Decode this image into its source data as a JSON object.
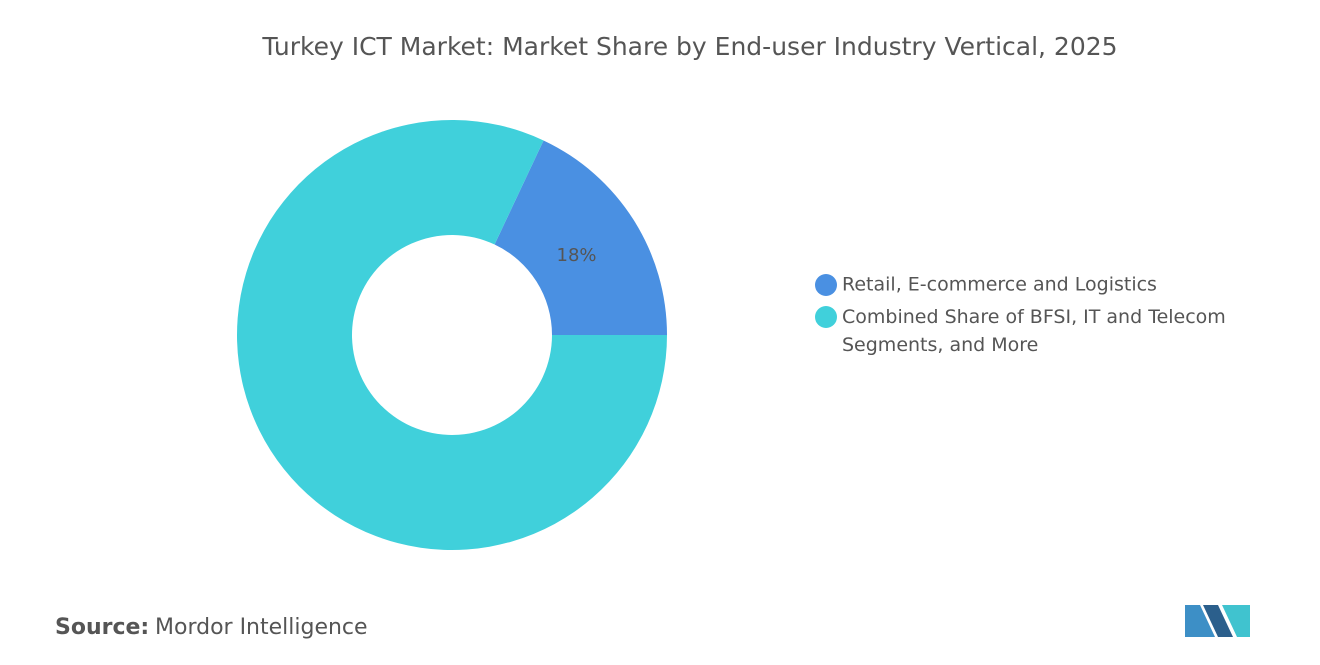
{
  "chart_data": {
    "type": "donut",
    "title": "Turkey ICT Market: Market Share by End-user Industry Vertical, 2025",
    "categories": [
      "Retail, E-commerce and Logistics",
      "Combined Share of BFSI, IT and Telecom Segments, and More"
    ],
    "values": [
      18,
      82
    ],
    "value_labels": [
      "18%",
      null
    ],
    "colors": [
      "#4a90e2",
      "#40d0db"
    ],
    "legend": "right"
  },
  "source_label": "Source:",
  "source": "Mordor Intelligence"
}
